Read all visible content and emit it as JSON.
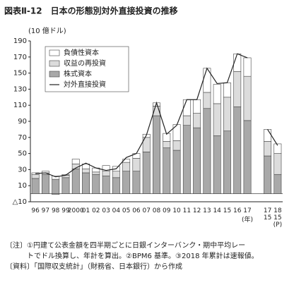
{
  "chart_data": {
    "type": "bar",
    "stacked": true,
    "title": "図表Ⅱ-12　日本の形態別対外直接投資の推移",
    "y_unit": "(10 億ドル)",
    "x_unit": "(年)",
    "categories": [
      "96",
      "97",
      "98",
      "99",
      "2000",
      "01",
      "02",
      "03",
      "04",
      "05",
      "06",
      "07",
      "08",
      "09",
      "10",
      "11",
      "12",
      "13",
      "14",
      "15",
      "16",
      "17",
      null,
      "17\n15",
      "18\n15\n(P)"
    ],
    "series": [
      {
        "name": "株式資本",
        "color": "#a9a9a9",
        "values": [
          19,
          24,
          18,
          20,
          31,
          26,
          24,
          22,
          20,
          28,
          28,
          52,
          97,
          57,
          54,
          85,
          82,
          106,
          72,
          78,
          108,
          91,
          null,
          47,
          24
        ]
      },
      {
        "name": "収益の再投資",
        "color": "#dcdcdc",
        "values": [
          5,
          2,
          -1,
          3,
          6,
          5,
          3,
          6,
          8,
          11,
          16,
          18,
          12,
          8,
          12,
          12,
          18,
          20,
          40,
          42,
          44,
          55,
          null,
          18,
          26
        ]
      },
      {
        "name": "負債性資本",
        "color": "#ffffff",
        "values": [
          2,
          2,
          4,
          1,
          6,
          6,
          5,
          7,
          6,
          4,
          6,
          4,
          4,
          10,
          20,
          20,
          17,
          30,
          24,
          18,
          22,
          23,
          null,
          15,
          12
        ]
      },
      {
        "name": "対外直接投資",
        "color": "#222222",
        "type": "line",
        "values": [
          25,
          26,
          21,
          23,
          32,
          38,
          32,
          29,
          31,
          45,
          50,
          73,
          113,
          74,
          85,
          117,
          117,
          156,
          137,
          138,
          174,
          169,
          null,
          80,
          60
        ]
      }
    ],
    "ylim": [
      -10,
      190
    ],
    "yticks": [
      {
        "value": -10,
        "label": "△10"
      },
      10,
      30,
      50,
      70,
      90,
      110,
      130,
      150,
      170,
      190
    ],
    "notes": [
      "〔注〕①円建て公表金額を四半期ごとに日銀インターバンク・期中平均レー",
      "　　　トでドル換算し、年計を算出。②BPM6 基準。③2018 年累計は速報値。",
      "〔資料〕「国際収支統計」（財務省、日本銀行）から作成"
    ]
  }
}
